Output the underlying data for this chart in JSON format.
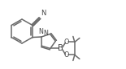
{
  "bg_color": "#ffffff",
  "line_color": "#6a6a6a",
  "lw": 1.1,
  "figsize": [
    1.55,
    0.86
  ],
  "dpi": 100,
  "xlim": [
    0,
    155
  ],
  "ylim": [
    0,
    86
  ]
}
